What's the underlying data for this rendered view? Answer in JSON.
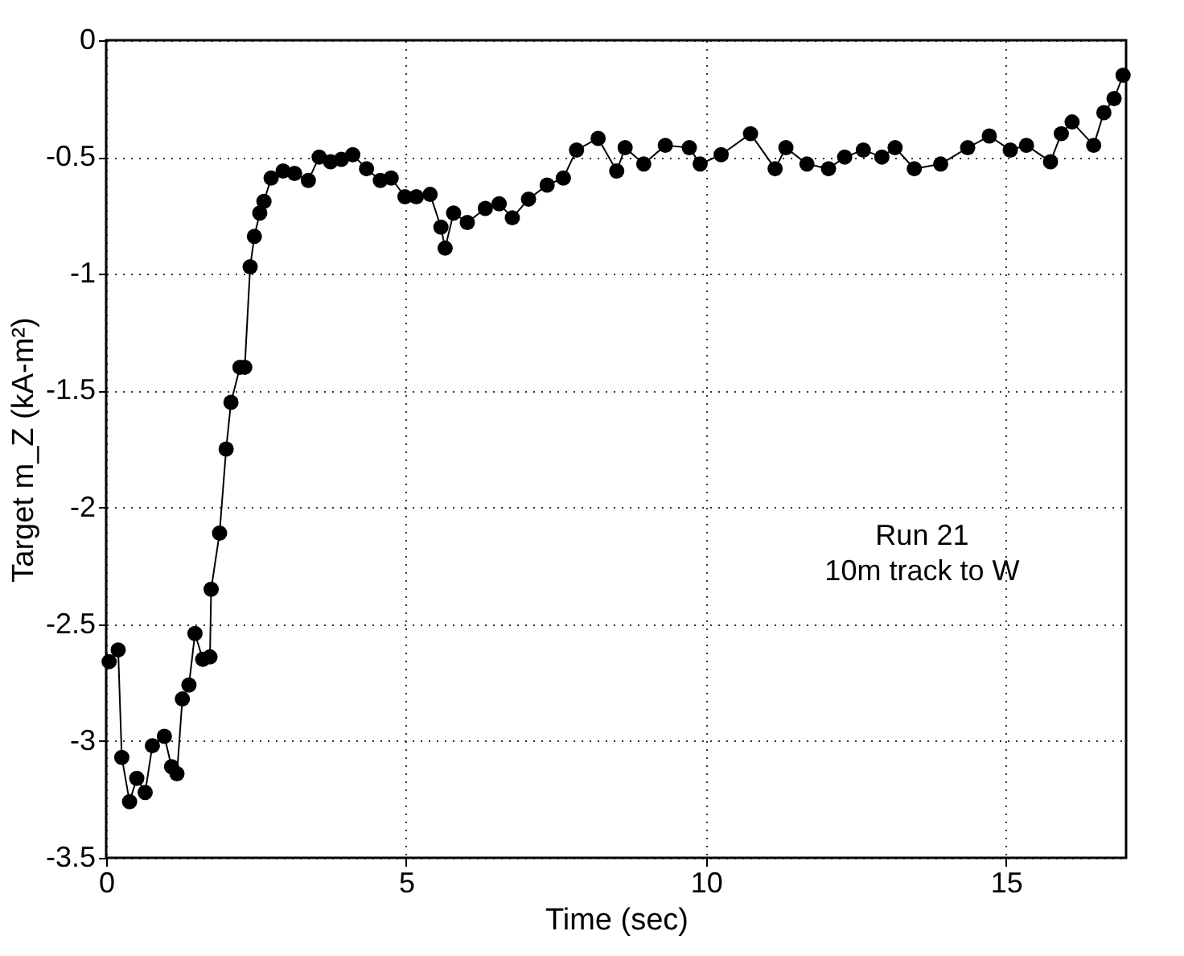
{
  "chart_data": {
    "type": "line",
    "xlabel": "Time (sec)",
    "ylabel": "Target m_Z (kA-m²)",
    "annotations": [
      "Run 21",
      "10m track to W"
    ],
    "xlim": [
      0,
      17
    ],
    "xticks": [
      0,
      5,
      10,
      15
    ],
    "ylim": [
      -3.5,
      0
    ],
    "yticks": [
      -3.5,
      -3,
      -2.5,
      -2,
      -1.5,
      -1,
      -0.5,
      0
    ],
    "grid": true,
    "marker": "circle",
    "line_style": "solid",
    "series": [
      {
        "color": "#000000",
        "x": [
          0.05,
          0.2,
          0.26,
          0.39,
          0.51,
          0.65,
          0.77,
          0.97,
          1.09,
          1.18,
          1.27,
          1.38,
          1.48,
          1.61,
          1.73,
          1.75,
          1.89,
          2.0,
          2.08,
          2.23,
          2.31,
          2.4,
          2.47,
          2.56,
          2.63,
          2.75,
          2.95,
          3.14,
          3.37,
          3.55,
          3.74,
          3.92,
          4.11,
          4.34,
          4.57,
          4.75,
          4.98,
          5.17,
          5.4,
          5.58,
          5.65,
          5.79,
          6.02,
          6.32,
          6.55,
          6.77,
          7.04,
          7.35,
          7.62,
          7.84,
          8.2,
          8.51,
          8.65,
          8.96,
          9.32,
          9.72,
          9.9,
          10.25,
          10.74,
          11.15,
          11.33,
          11.68,
          12.04,
          12.31,
          12.62,
          12.93,
          13.15,
          13.47,
          13.91,
          14.36,
          14.72,
          15.07,
          15.34,
          15.74,
          15.92,
          16.1,
          16.46,
          16.63,
          16.8,
          16.95
        ],
        "values": [
          -2.66,
          -2.61,
          -3.07,
          -3.26,
          -3.16,
          -3.22,
          -3.02,
          -2.98,
          -3.11,
          -3.14,
          -2.82,
          -2.76,
          -2.54,
          -2.65,
          -2.64,
          -2.35,
          -2.11,
          -1.75,
          -1.55,
          -1.4,
          -1.4,
          -0.97,
          -0.84,
          -0.74,
          -0.69,
          -0.59,
          -0.56,
          -0.57,
          -0.6,
          -0.5,
          -0.52,
          -0.51,
          -0.49,
          -0.55,
          -0.6,
          -0.59,
          -0.67,
          -0.67,
          -0.66,
          -0.8,
          -0.89,
          -0.74,
          -0.78,
          -0.72,
          -0.7,
          -0.76,
          -0.68,
          -0.62,
          -0.59,
          -0.47,
          -0.42,
          -0.56,
          -0.46,
          -0.53,
          -0.45,
          -0.46,
          -0.53,
          -0.49,
          -0.4,
          -0.55,
          -0.46,
          -0.53,
          -0.55,
          -0.5,
          -0.47,
          -0.5,
          -0.46,
          -0.55,
          -0.53,
          -0.46,
          -0.41,
          -0.47,
          -0.45,
          -0.52,
          -0.4,
          -0.35,
          -0.45,
          -0.31,
          -0.25,
          -0.15
        ]
      }
    ]
  }
}
